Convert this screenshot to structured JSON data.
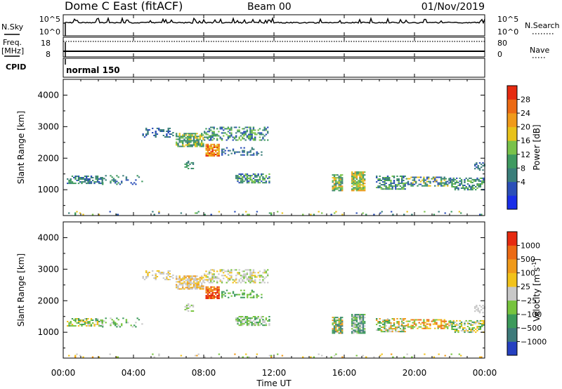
{
  "header": {
    "title": "Dome C East (fitACF)",
    "beam": "Beam 00",
    "date": "01/Nov/2019"
  },
  "side_labels": {
    "nsky": "N.Sky",
    "freq": "Freq.",
    "freq_unit": "[MHz]",
    "cpid": "CPID",
    "nsearch": "N.Search",
    "nave": "Nave"
  },
  "cpid_value": "normal 150",
  "colors": {
    "power": [
      "#1a2ee8",
      "#2b4fb8",
      "#3a7e7a",
      "#3f9a60",
      "#79c24a",
      "#e8c21a",
      "#f09a1a",
      "#ec6a14",
      "#e62a10"
    ],
    "velocity": [
      "#2540c0",
      "#3d7a7a",
      "#3c9a5a",
      "#77c43e",
      "#c8c8c8",
      "#f2c21a",
      "#f09a1a",
      "#ec6a14",
      "#e62a10"
    ]
  },
  "chart_data": [
    {
      "type": "line",
      "name": "nsky-nsearch",
      "ytick_labels": [
        "10^5",
        "10^0"
      ],
      "ytick_labels_right": [
        "10^5",
        "10^0"
      ]
    },
    {
      "type": "line",
      "name": "freq-nave",
      "yticks_left": [
        "18",
        "8"
      ],
      "yticks_right": [
        "80",
        "0"
      ]
    },
    {
      "type": "heatmap",
      "name": "power",
      "ylabel": "Slant Range [km]",
      "xlim": [
        0,
        24
      ],
      "ylim": [
        180,
        4500
      ],
      "yticks": [
        1000,
        2000,
        3000,
        4000
      ],
      "colorbar": {
        "label": "Power [dB]",
        "ticks": [
          "28",
          "24",
          "20",
          "16",
          "12",
          "8",
          "4"
        ]
      }
    },
    {
      "type": "heatmap",
      "name": "velocity",
      "ylabel": "Slant Range [km]",
      "xlim": [
        0,
        24
      ],
      "ylim": [
        180,
        4500
      ],
      "yticks": [
        1000,
        2000,
        3000,
        4000
      ],
      "colorbar": {
        "label": "Velocity [m s",
        "label_sup": "-1",
        "label_close": "]",
        "ticks": [
          "1000",
          "500",
          "100",
          "25",
          "−25",
          "−100",
          "−500",
          "−1000"
        ]
      }
    }
  ],
  "x_axis": {
    "xlabel": "Time UT",
    "ticks": [
      {
        "hour": 0,
        "label": "00:00"
      },
      {
        "hour": 4,
        "label": "04:00"
      },
      {
        "hour": 8,
        "label": "08:00"
      },
      {
        "hour": 12,
        "label": "12:00"
      },
      {
        "hour": 16,
        "label": "16:00"
      },
      {
        "hour": 20,
        "label": "20:00"
      },
      {
        "hour": 24,
        "label": "00:00"
      }
    ]
  },
  "echo_regions": [
    {
      "t0": 0.2,
      "t1": 2.2,
      "r0": 1180,
      "r1": 1420,
      "p": 0.55,
      "pow": [
        1,
        2,
        3
      ],
      "vel": [
        4,
        3,
        5,
        2
      ]
    },
    {
      "t0": 2.2,
      "t1": 4.5,
      "r0": 1150,
      "r1": 1450,
      "p": 0.22,
      "pow": [
        1,
        2,
        3
      ],
      "vel": [
        4,
        3,
        2
      ]
    },
    {
      "t0": 4.5,
      "t1": 6.3,
      "r0": 2650,
      "r1": 2950,
      "p": 0.35,
      "pow": [
        1,
        2
      ],
      "vel": [
        4,
        4,
        5
      ]
    },
    {
      "t0": 6.4,
      "t1": 8.0,
      "r0": 2350,
      "r1": 2800,
      "p": 0.7,
      "pow": [
        2,
        3,
        4,
        5
      ],
      "vel": [
        4,
        4,
        5,
        6
      ]
    },
    {
      "t0": 8.0,
      "t1": 11.6,
      "r0": 2550,
      "r1": 3000,
      "p": 0.45,
      "pow": [
        1,
        2,
        3,
        4
      ],
      "vel": [
        4,
        4,
        5,
        3
      ]
    },
    {
      "t0": 8.1,
      "t1": 8.9,
      "r0": 2050,
      "r1": 2450,
      "p": 0.8,
      "pow": [
        5,
        6,
        7,
        8
      ],
      "vel": [
        6,
        7,
        8
      ]
    },
    {
      "t0": 6.9,
      "t1": 7.4,
      "r0": 1650,
      "r1": 1900,
      "p": 0.5,
      "pow": [
        2,
        3
      ],
      "vel": [
        3,
        4
      ]
    },
    {
      "t0": 9.0,
      "t1": 11.3,
      "r0": 2080,
      "r1": 2320,
      "p": 0.3,
      "pow": [
        1,
        2
      ],
      "vel": [
        3,
        2
      ]
    },
    {
      "t0": 9.8,
      "t1": 11.7,
      "r0": 1200,
      "r1": 1500,
      "p": 0.6,
      "pow": [
        1,
        2,
        3,
        4
      ],
      "vel": [
        3,
        2,
        4
      ]
    },
    {
      "t0": 15.3,
      "t1": 15.9,
      "r0": 950,
      "r1": 1450,
      "p": 0.8,
      "pow": [
        2,
        3,
        4,
        5,
        6
      ],
      "vel": [
        2,
        3,
        1,
        6
      ]
    },
    {
      "t0": 16.4,
      "t1": 17.2,
      "r0": 950,
      "r1": 1550,
      "p": 0.85,
      "pow": [
        3,
        4,
        5,
        6
      ],
      "vel": [
        2,
        3,
        1,
        4
      ]
    },
    {
      "t0": 17.8,
      "t1": 19.5,
      "r0": 1000,
      "r1": 1450,
      "p": 0.55,
      "pow": [
        1,
        2,
        3,
        4
      ],
      "vel": [
        3,
        2,
        6,
        4
      ]
    },
    {
      "t0": 19.5,
      "t1": 22.0,
      "r0": 1100,
      "r1": 1400,
      "p": 0.55,
      "pow": [
        1,
        2,
        3,
        5
      ],
      "vel": [
        6,
        7,
        5,
        3
      ]
    },
    {
      "t0": 22.0,
      "t1": 23.9,
      "r0": 980,
      "r1": 1350,
      "p": 0.55,
      "pow": [
        1,
        2,
        3,
        4
      ],
      "vel": [
        3,
        2,
        5,
        4
      ]
    },
    {
      "t0": 23.4,
      "t1": 23.95,
      "r0": 1600,
      "r1": 1850,
      "p": 0.4,
      "pow": [
        1,
        2
      ],
      "vel": [
        4,
        4
      ]
    },
    {
      "t0": 0.1,
      "t1": 23.9,
      "r0": 190,
      "r1": 320,
      "p": 0.07,
      "pow": [
        1,
        2,
        3,
        4,
        5
      ],
      "vel": [
        4,
        5,
        6,
        3
      ]
    }
  ]
}
